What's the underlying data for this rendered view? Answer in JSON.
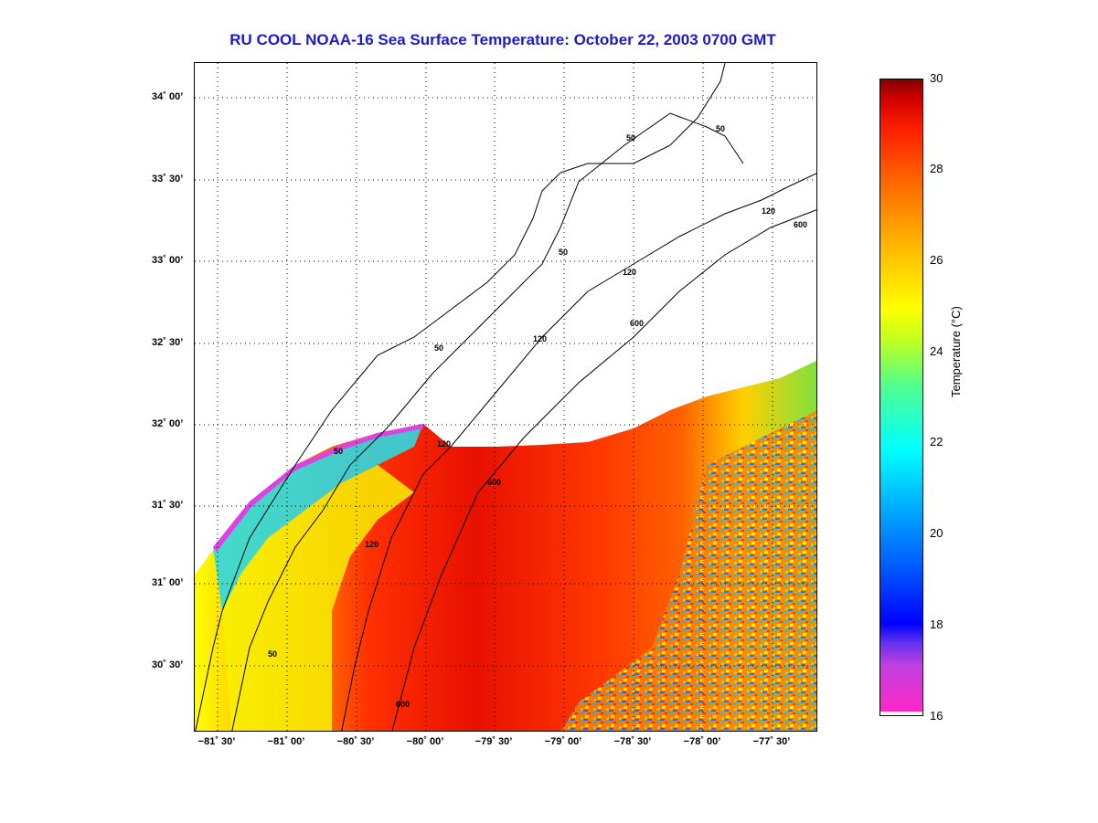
{
  "title": "RU COOL  NOAA-16  Sea Surface Temperature:  October 22, 2003 0700 GMT",
  "map": {
    "lat_ticks": [
      "34˚ 00’",
      "33˚ 30’",
      "33˚ 00’",
      "32˚ 30’",
      "32˚ 00’",
      "31˚ 30’",
      "31˚ 00’",
      "30˚ 30’"
    ],
    "lon_ticks": [
      "−81˚ 30’",
      "−81˚ 00’",
      "−80˚ 30’",
      "−80˚ 00’",
      "−79˚ 30’",
      "−79˚ 00’",
      "−78˚ 30’",
      "−78˚ 00’",
      "−77˚ 30’"
    ],
    "depth_labels": [
      "50",
      "50",
      "50",
      "50",
      "50",
      "50",
      "120",
      "120",
      "120",
      "120",
      "120",
      "600",
      "600",
      "600",
      "600"
    ],
    "grid": "dotted"
  },
  "colorbar": {
    "label": "Temperature (°C)",
    "ticks": [
      "30",
      "28",
      "26",
      "24",
      "22",
      "20",
      "18",
      "16"
    ],
    "colors": {
      "high": "#7a0000",
      "mid_high": "#ff2000",
      "mid": "#ffff00",
      "mid_low": "#00ffff",
      "low": "#0000ff",
      "lowest": "#ff28c8"
    }
  }
}
